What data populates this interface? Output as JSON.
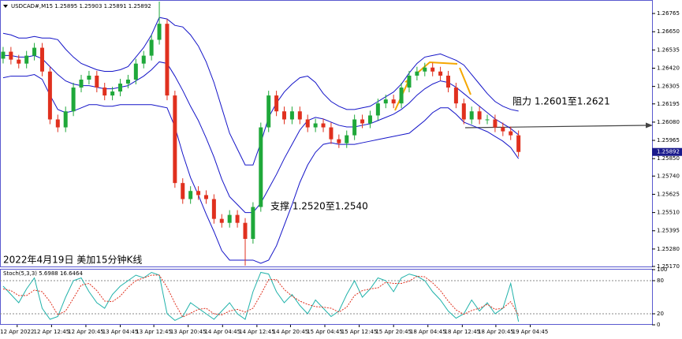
{
  "chart_data": [
    {
      "type": "candlestick",
      "title": "USDCAD#,M15 1.25895 1.25903 1.25891 1.25892",
      "annotations": [
        "阻力 1.2601至1.2621",
        "支撑 1.2520至1.2540",
        "2022年4月19日 美加15分钟K线"
      ],
      "last_price": 1.25892,
      "up_color": "#1fa83a",
      "down_color": "#e0301e",
      "band_color": "#1414c8",
      "xlim": [
        -0.4,
        83.1
      ],
      "ylim": [
        1.2517,
        1.2684
      ],
      "yticks": [
        1.26765,
        {
          "value": 1.2665,
          "label": "1.26650"
        },
        1.26535,
        {
          "value": 1.2642,
          "label": "1.26420"
        },
        1.26305,
        1.26195,
        {
          "value": 1.2608,
          "label": "1.26080"
        },
        1.25965,
        {
          "value": 1.2585,
          "label": "1.25850"
        },
        {
          "value": 1.2574,
          "label": "1.25740"
        },
        1.25625,
        {
          "value": 1.2551,
          "label": "1.25510"
        },
        1.25395,
        {
          "value": 1.2528,
          "label": "1.25280"
        },
        {
          "value": 1.2517,
          "label": "1.25170"
        }
      ],
      "open": [
        1.2648,
        1.26524,
        1.26474,
        1.26449,
        1.26499,
        1.26549,
        1.26399,
        1.26097,
        1.26047,
        1.26148,
        1.26298,
        1.26348,
        1.26373,
        1.26298,
        1.26248,
        1.26273,
        1.26323,
        1.26348,
        1.26449,
        1.26499,
        1.26599,
        1.267,
        1.26248,
        1.25696,
        1.25595,
        1.25646,
        1.2562,
        1.25595,
        1.2547,
        1.25445,
        1.25495,
        1.25445,
        1.25344,
        1.25545,
        1.26047,
        1.26248,
        1.26148,
        1.26097,
        1.26148,
        1.26097,
        1.26047,
        1.26072,
        1.26047,
        1.25972,
        1.25947,
        1.25997,
        1.26097,
        1.26072,
        1.26122,
        1.26198,
        1.26223,
        1.26198,
        1.26298,
        1.26373,
        1.26399,
        1.26424,
        1.26399,
        1.26373,
        1.26298,
        1.26198,
        1.26097,
        1.26148,
        1.26097,
        1.26097,
        1.26047,
        1.26022,
        1.25997
      ],
      "high": [
        1.26554,
        1.26554,
        1.26504,
        1.26529,
        1.26579,
        1.26579,
        1.26429,
        1.26127,
        1.26178,
        1.26328,
        1.26378,
        1.26403,
        1.26403,
        1.26328,
        1.26303,
        1.26353,
        1.26378,
        1.26479,
        1.26529,
        1.26629,
        1.2684,
        1.2673,
        1.26278,
        1.25726,
        1.25676,
        1.25676,
        1.2565,
        1.25625,
        1.255,
        1.25525,
        1.25525,
        1.25475,
        1.25575,
        1.26077,
        1.26278,
        1.26278,
        1.26178,
        1.26178,
        1.26178,
        1.26127,
        1.26102,
        1.26102,
        1.26077,
        1.26002,
        1.26027,
        1.26127,
        1.26127,
        1.26152,
        1.26228,
        1.26253,
        1.26253,
        1.26328,
        1.26403,
        1.26429,
        1.26454,
        1.26454,
        1.26429,
        1.26403,
        1.26328,
        1.26228,
        1.26178,
        1.26178,
        1.26127,
        1.26127,
        1.26077,
        1.26052,
        1.26027
      ],
      "low": [
        1.2645,
        1.26444,
        1.26419,
        1.26419,
        1.26469,
        1.26369,
        1.26067,
        1.26017,
        1.26017,
        1.26118,
        1.26268,
        1.26318,
        1.26268,
        1.26218,
        1.26218,
        1.26243,
        1.26293,
        1.26318,
        1.26419,
        1.26469,
        1.26569,
        1.26218,
        1.25666,
        1.25565,
        1.25565,
        1.2559,
        1.25565,
        1.2544,
        1.25415,
        1.25415,
        1.25415,
        1.25175,
        1.25314,
        1.25515,
        1.26017,
        1.26118,
        1.26067,
        1.26067,
        1.26067,
        1.26017,
        1.26017,
        1.26017,
        1.25942,
        1.25917,
        1.25917,
        1.25967,
        1.26042,
        1.26042,
        1.26092,
        1.26168,
        1.26168,
        1.26168,
        1.26268,
        1.26343,
        1.26369,
        1.26369,
        1.26343,
        1.26268,
        1.26168,
        1.26067,
        1.26067,
        1.26067,
        1.26067,
        1.26017,
        1.25992,
        1.25967,
        1.25862
      ],
      "close": [
        1.26524,
        1.26474,
        1.26449,
        1.26499,
        1.26549,
        1.26399,
        1.26097,
        1.26047,
        1.26148,
        1.26298,
        1.26348,
        1.26373,
        1.26298,
        1.26248,
        1.26273,
        1.26323,
        1.26348,
        1.26449,
        1.26499,
        1.26599,
        1.267,
        1.26248,
        1.25696,
        1.25595,
        1.25646,
        1.2562,
        1.25595,
        1.2547,
        1.25445,
        1.25495,
        1.25445,
        1.25344,
        1.25545,
        1.26047,
        1.26248,
        1.26148,
        1.26097,
        1.26148,
        1.26097,
        1.26047,
        1.26072,
        1.26047,
        1.25972,
        1.25947,
        1.25997,
        1.26097,
        1.26072,
        1.26122,
        1.26198,
        1.26223,
        1.26198,
        1.26298,
        1.26373,
        1.26399,
        1.26424,
        1.26399,
        1.26373,
        1.26298,
        1.26198,
        1.26097,
        1.26148,
        1.26097,
        1.26097,
        1.26047,
        1.26022,
        1.25997,
        1.25892
      ],
      "upper_band": [
        1.2664,
        1.2663,
        1.2661,
        1.2661,
        1.2662,
        1.2661,
        1.2661,
        1.266,
        1.2654,
        1.2649,
        1.2645,
        1.2643,
        1.2641,
        1.264,
        1.264,
        1.2641,
        1.2643,
        1.2649,
        1.2655,
        1.2663,
        1.2674,
        1.2673,
        1.2669,
        1.2668,
        1.2663,
        1.2656,
        1.2646,
        1.2633,
        1.2617,
        1.2601,
        1.2591,
        1.2581,
        1.2581,
        1.2595,
        1.2611,
        1.262,
        1.2627,
        1.2632,
        1.2636,
        1.2637,
        1.2633,
        1.2626,
        1.2621,
        1.2618,
        1.2616,
        1.2616,
        1.2617,
        1.2618,
        1.2621,
        1.2624,
        1.2627,
        1.2632,
        1.2639,
        1.2645,
        1.2649,
        1.265,
        1.2651,
        1.2649,
        1.2647,
        1.2644,
        1.2638,
        1.2632,
        1.2626,
        1.2621,
        1.2618,
        1.2616,
        1.2615
      ],
      "middle_band": [
        1.265,
        1.265,
        1.2649,
        1.2649,
        1.265,
        1.2648,
        1.2643,
        1.2638,
        1.2634,
        1.2632,
        1.2631,
        1.2631,
        1.263,
        1.2629,
        1.2629,
        1.263,
        1.2631,
        1.2634,
        1.2637,
        1.2641,
        1.2646,
        1.2645,
        1.2637,
        1.2628,
        1.2618,
        1.2609,
        1.2598,
        1.2586,
        1.2572,
        1.2561,
        1.2556,
        1.2551,
        1.2551,
        1.2557,
        1.2566,
        1.2575,
        1.2585,
        1.2594,
        1.2603,
        1.2609,
        1.2611,
        1.261,
        1.2608,
        1.2606,
        1.2605,
        1.2605,
        1.2606,
        1.2607,
        1.2609,
        1.2611,
        1.2613,
        1.2616,
        1.262,
        1.2625,
        1.2629,
        1.2632,
        1.2634,
        1.2633,
        1.263,
        1.2626,
        1.2622,
        1.2618,
        1.2614,
        1.261,
        1.2607,
        1.2604,
        1.26
      ],
      "lower_band": [
        1.2636,
        1.2637,
        1.2637,
        1.2637,
        1.2638,
        1.2635,
        1.2625,
        1.2616,
        1.2614,
        1.2615,
        1.2617,
        1.2619,
        1.2619,
        1.2618,
        1.2618,
        1.2619,
        1.2619,
        1.2619,
        1.2619,
        1.2619,
        1.2618,
        1.2617,
        1.2605,
        1.2588,
        1.2573,
        1.2562,
        1.255,
        1.2539,
        1.2527,
        1.2521,
        1.2521,
        1.2521,
        1.2521,
        1.2519,
        1.2521,
        1.253,
        1.2543,
        1.2556,
        1.257,
        1.2581,
        1.2589,
        1.2594,
        1.2595,
        1.2594,
        1.2594,
        1.2594,
        1.2595,
        1.2596,
        1.2597,
        1.2598,
        1.2599,
        1.26,
        1.2601,
        1.2605,
        1.2609,
        1.2614,
        1.2617,
        1.2617,
        1.2613,
        1.2608,
        1.2606,
        1.2604,
        1.2602,
        1.2599,
        1.2596,
        1.2592,
        1.2585
      ]
    },
    {
      "type": "stochastic",
      "title": "Stoch(5,3,3) 5.6988 16.6464",
      "main_color": "#20b2aa",
      "signal_color": "#e0301e",
      "xlim": [
        -0.4,
        83.1
      ],
      "ylim": [
        0,
        100
      ],
      "yticks": [
        100,
        80,
        20,
        0
      ],
      "xticks": [
        {
          "value": 1.8,
          "label": "12 Apr 2022"
        },
        {
          "value": 6.2,
          "label": "12 Apr 12:45"
        },
        {
          "value": 10.6,
          "label": "12 Apr 20:45"
        },
        {
          "value": 15.0,
          "label": "13 Apr 04:45"
        },
        {
          "value": 19.3,
          "label": "13 Apr 12:45"
        },
        {
          "value": 23.7,
          "label": "13 Apr 20:45"
        },
        {
          "value": 28.1,
          "label": "14 Apr 04:45"
        },
        {
          "value": 32.5,
          "label": "14 Apr 12:45"
        },
        {
          "value": 36.8,
          "label": "14 Apr 20:45"
        },
        {
          "value": 41.2,
          "label": "15 Apr 04:45"
        },
        {
          "value": 45.6,
          "label": "15 Apr 12:45"
        },
        {
          "value": 50.0,
          "label": "15 Apr 20:45"
        },
        {
          "value": 54.4,
          "label": "18 Apr 04:45"
        },
        {
          "value": 58.8,
          "label": "18 Apr 12:45"
        },
        {
          "value": 63.1,
          "label": "18 Apr 20:45"
        },
        {
          "value": 67.5,
          "label": "19 Apr 04:45"
        }
      ],
      "main": [
        70,
        55,
        40,
        65,
        85,
        30,
        10,
        15,
        50,
        80,
        85,
        60,
        40,
        30,
        55,
        70,
        80,
        90,
        85,
        95,
        90,
        20,
        8,
        15,
        40,
        30,
        20,
        10,
        25,
        40,
        20,
        10,
        60,
        95,
        92,
        60,
        40,
        55,
        35,
        20,
        45,
        30,
        15,
        25,
        55,
        80,
        50,
        65,
        85,
        80,
        60,
        85,
        92,
        88,
        80,
        60,
        45,
        25,
        12,
        20,
        45,
        25,
        40,
        20,
        30,
        75,
        5.6988
      ],
      "signal": [
        65,
        62,
        53,
        53,
        63,
        60,
        42,
        18,
        25,
        48,
        72,
        75,
        62,
        43,
        42,
        52,
        68,
        80,
        85,
        90,
        90,
        68,
        39,
        14,
        21,
        28,
        30,
        20,
        18,
        25,
        28,
        23,
        30,
        55,
        82,
        82,
        64,
        52,
        43,
        37,
        33,
        32,
        30,
        23,
        32,
        53,
        62,
        65,
        67,
        77,
        75,
        75,
        79,
        88,
        87,
        76,
        62,
        43,
        27,
        19,
        26,
        30,
        37,
        28,
        30,
        42,
        16.6464
      ]
    }
  ]
}
